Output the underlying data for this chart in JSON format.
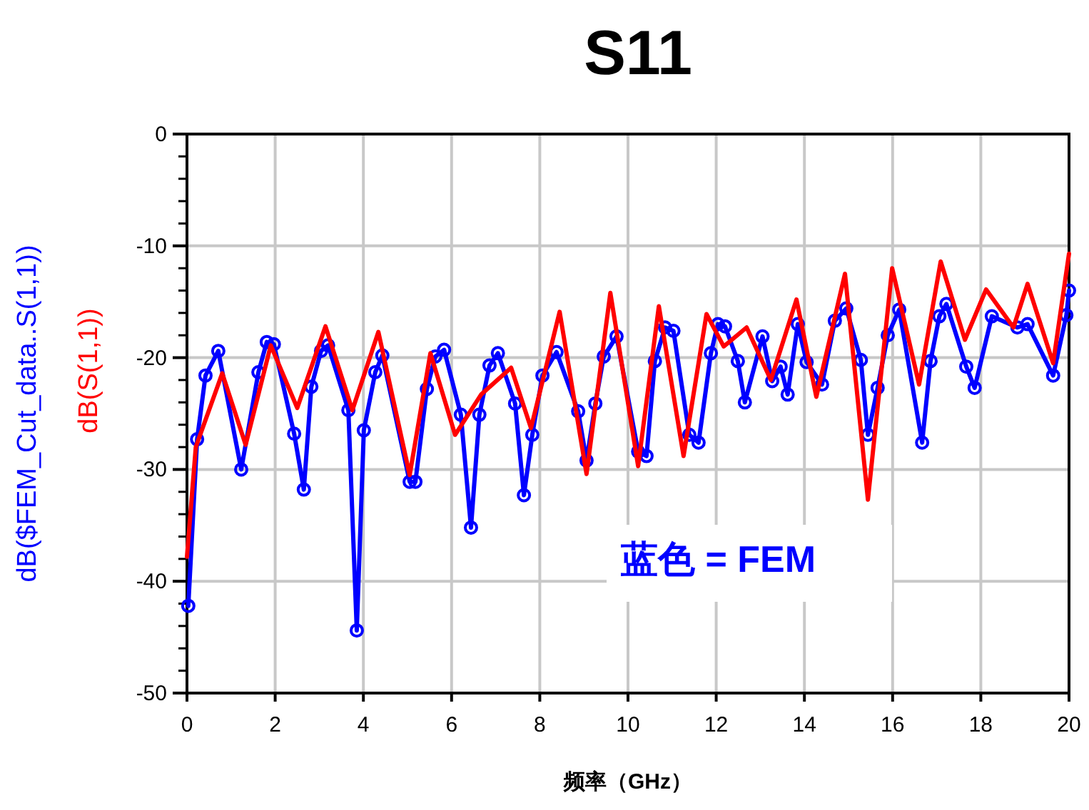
{
  "chart_data": {
    "type": "line",
    "title": "S11",
    "xlabel": "频率（GHz）",
    "ylabel": "dB($FEM_Cut_data..S(1,1))",
    "annotations": [
      "dB(S(1,1))"
    ],
    "xlim": [
      0,
      20
    ],
    "xticks": [
      0,
      2,
      4,
      6,
      8,
      10,
      12,
      14,
      16,
      18,
      20
    ],
    "ylim": [
      -50,
      0
    ],
    "yticks": [
      0,
      {
        "value": -2,
        "label": null
      },
      {
        "value": -4,
        "label": null
      },
      {
        "value": -6,
        "label": null
      },
      {
        "value": -8,
        "label": null
      },
      -10,
      {
        "value": -12,
        "label": null
      },
      {
        "value": -14,
        "label": null
      },
      {
        "value": -16,
        "label": null
      },
      {
        "value": -18,
        "label": null
      },
      -20,
      {
        "value": -22,
        "label": null
      },
      {
        "value": -24,
        "label": null
      },
      {
        "value": -26,
        "label": null
      },
      {
        "value": -28,
        "label": null
      },
      -30,
      {
        "value": -32,
        "label": null
      },
      {
        "value": -34,
        "label": null
      },
      {
        "value": -36,
        "label": null
      },
      {
        "value": -38,
        "label": null
      },
      -40,
      {
        "value": -42,
        "label": null
      },
      {
        "value": -44,
        "label": null
      },
      {
        "value": -46,
        "label": null
      },
      {
        "value": -48,
        "label": null
      },
      -50
    ],
    "grid": true,
    "legend": "bottom right",
    "line_style": "solid",
    "series": [
      {
        "name": "蓝色 = FEM",
        "color": "#0000ff",
        "marker": "circle",
        "x": [
          0.03,
          0.23,
          0.42,
          0.71,
          1.23,
          1.62,
          1.81,
          1.97,
          2.43,
          2.65,
          2.82,
          3.04,
          3.2,
          3.66,
          3.85,
          4.01,
          4.27,
          4.43,
          5.05,
          5.18,
          5.44,
          5.63,
          5.83,
          6.21,
          6.44,
          6.63,
          6.86,
          7.05,
          7.44,
          7.64,
          7.83,
          8.06,
          8.38,
          8.87,
          9.06,
          9.26,
          9.45,
          9.74,
          10.23,
          10.42,
          10.61,
          10.84,
          11.03,
          11.39,
          11.6,
          11.88,
          12.04,
          12.2,
          12.49,
          12.65,
          13.05,
          13.27,
          13.46,
          13.62,
          13.85,
          14.05,
          14.4,
          14.69,
          14.95,
          15.28,
          15.44,
          15.66,
          15.89,
          16.15,
          16.67,
          16.86,
          17.06,
          17.22,
          17.67,
          17.86,
          18.25,
          18.83,
          19.06,
          19.64,
          19.94,
          20
        ],
        "values": [
          -42.2,
          -27.3,
          -21.6,
          -19.4,
          -30,
          -21.3,
          -18.6,
          -18.8,
          -26.8,
          -31.8,
          -22.6,
          -19.4,
          -18.9,
          -24.7,
          -44.4,
          -26.5,
          -21.3,
          -19.8,
          -31.1,
          -31.1,
          -22.8,
          -19.9,
          -19.3,
          -25.1,
          -35.2,
          -25.1,
          -20.7,
          -19.6,
          -24.1,
          -32.3,
          -26.9,
          -21.6,
          -19.5,
          -24.8,
          -29.2,
          -24.1,
          -19.9,
          -18.1,
          -28.4,
          -28.8,
          -20.3,
          -17.3,
          -17.6,
          -26.9,
          -27.6,
          -19.6,
          -17,
          -17.2,
          -20.3,
          -24,
          -18.1,
          -22.1,
          -20.8,
          -23.3,
          -17,
          -20.4,
          -22.4,
          -16.7,
          -15.6,
          -20.2,
          -26.9,
          -22.7,
          -18,
          -15.7,
          -27.6,
          -20.3,
          -16.3,
          -15.2,
          -20.8,
          -22.7,
          -16.3,
          -17.3,
          -17,
          -21.6,
          -16.2,
          -14
        ]
      },
      {
        "color": "#ff0000",
        "marker": "none",
        "x": [
          0,
          0.2,
          0.8,
          1.33,
          1.9,
          2.5,
          3.14,
          3.75,
          4.34,
          5.05,
          5.52,
          6.08,
          6.67,
          7.35,
          7.8,
          8.45,
          9.06,
          9.6,
          10.23,
          10.7,
          11.26,
          11.78,
          12.17,
          12.69,
          13.24,
          13.82,
          14.27,
          14.92,
          15.44,
          15.99,
          16.6,
          17.09,
          17.64,
          18.12,
          18.74,
          19.06,
          19.64,
          20
        ],
        "values": [
          -37.8,
          -28,
          -21.4,
          -27.8,
          -18.9,
          -24.5,
          -17.2,
          -24.7,
          -17.7,
          -30.5,
          -19.6,
          -26.9,
          -23.3,
          -20.9,
          -26.3,
          -15.9,
          -30.4,
          -14.2,
          -29.7,
          -15.4,
          -28.8,
          -16.1,
          -19,
          -17.3,
          -22,
          -14.8,
          -23.5,
          -12.5,
          -32.7,
          -12,
          -22.4,
          -11.4,
          -18.4,
          -13.9,
          -17.3,
          -13.4,
          -20.5,
          -10.7
        ]
      }
    ]
  }
}
